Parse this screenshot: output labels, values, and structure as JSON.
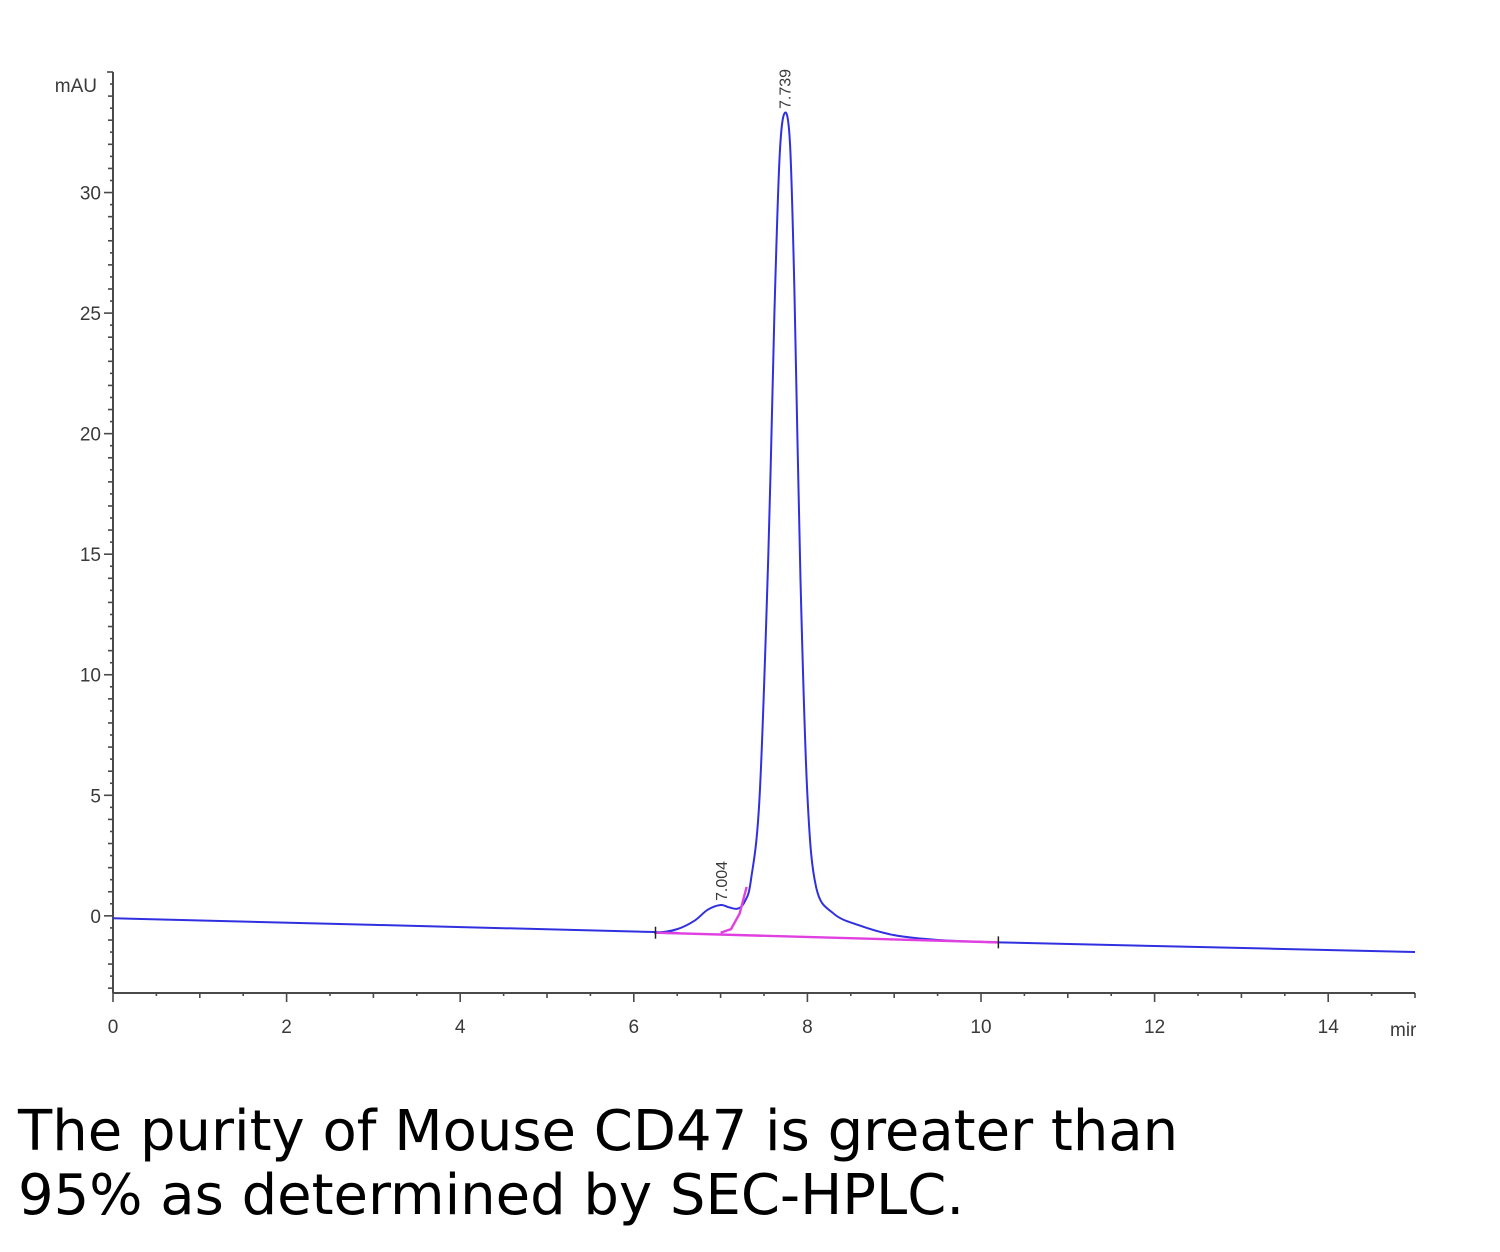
{
  "chart_data": {
    "type": "line",
    "y_unit": "mAU",
    "x_unit": "mir",
    "xlim": [
      0,
      15
    ],
    "ylim": [
      -3.2,
      35
    ],
    "x_ticks": [
      0,
      2,
      4,
      6,
      8,
      10,
      12,
      14
    ],
    "y_ticks": [
      0,
      5,
      10,
      15,
      20,
      25,
      30
    ],
    "grid": false,
    "series": [
      {
        "role": "chromatogram",
        "color": "#3030e0",
        "points": [
          [
            0,
            -0.1
          ],
          [
            6.0,
            -0.65
          ],
          [
            6.25,
            -0.7
          ],
          [
            6.5,
            -0.55
          ],
          [
            6.7,
            -0.2
          ],
          [
            6.85,
            0.25
          ],
          [
            7.0,
            0.45
          ],
          [
            7.1,
            0.35
          ],
          [
            7.2,
            0.3
          ],
          [
            7.28,
            0.6
          ],
          [
            7.35,
            1.5
          ],
          [
            7.45,
            5.0
          ],
          [
            7.55,
            15.0
          ],
          [
            7.62,
            25.0
          ],
          [
            7.68,
            31.5
          ],
          [
            7.739,
            33.3
          ],
          [
            7.8,
            32.0
          ],
          [
            7.85,
            26.0
          ],
          [
            7.92,
            14.0
          ],
          [
            8.0,
            5.0
          ],
          [
            8.1,
            1.2
          ],
          [
            8.3,
            0.1
          ],
          [
            8.6,
            -0.4
          ],
          [
            9.0,
            -0.8
          ],
          [
            9.5,
            -1.0
          ],
          [
            10.2,
            -1.1
          ],
          [
            12.0,
            -1.25
          ],
          [
            15.0,
            -1.5
          ]
        ]
      },
      {
        "role": "integration-baseline",
        "color": "#e040e0",
        "points": [
          [
            6.25,
            -0.7
          ],
          [
            10.2,
            -1.1
          ]
        ]
      },
      {
        "role": "peak-split",
        "color": "#e040e0",
        "points": [
          [
            7.0,
            -0.7
          ],
          [
            7.12,
            -0.55
          ],
          [
            7.22,
            0.1
          ],
          [
            7.3,
            1.2
          ]
        ]
      }
    ],
    "peaks": [
      {
        "x": 7.004,
        "y": 0.45,
        "label": "7.004"
      },
      {
        "x": 7.739,
        "y": 33.3,
        "label": "7.739"
      }
    ],
    "integration_marks": [
      6.25,
      10.2
    ]
  },
  "caption": {
    "line1": "The purity of Mouse CD47 is greater than",
    "line2": "95% as determined by SEC-HPLC."
  }
}
